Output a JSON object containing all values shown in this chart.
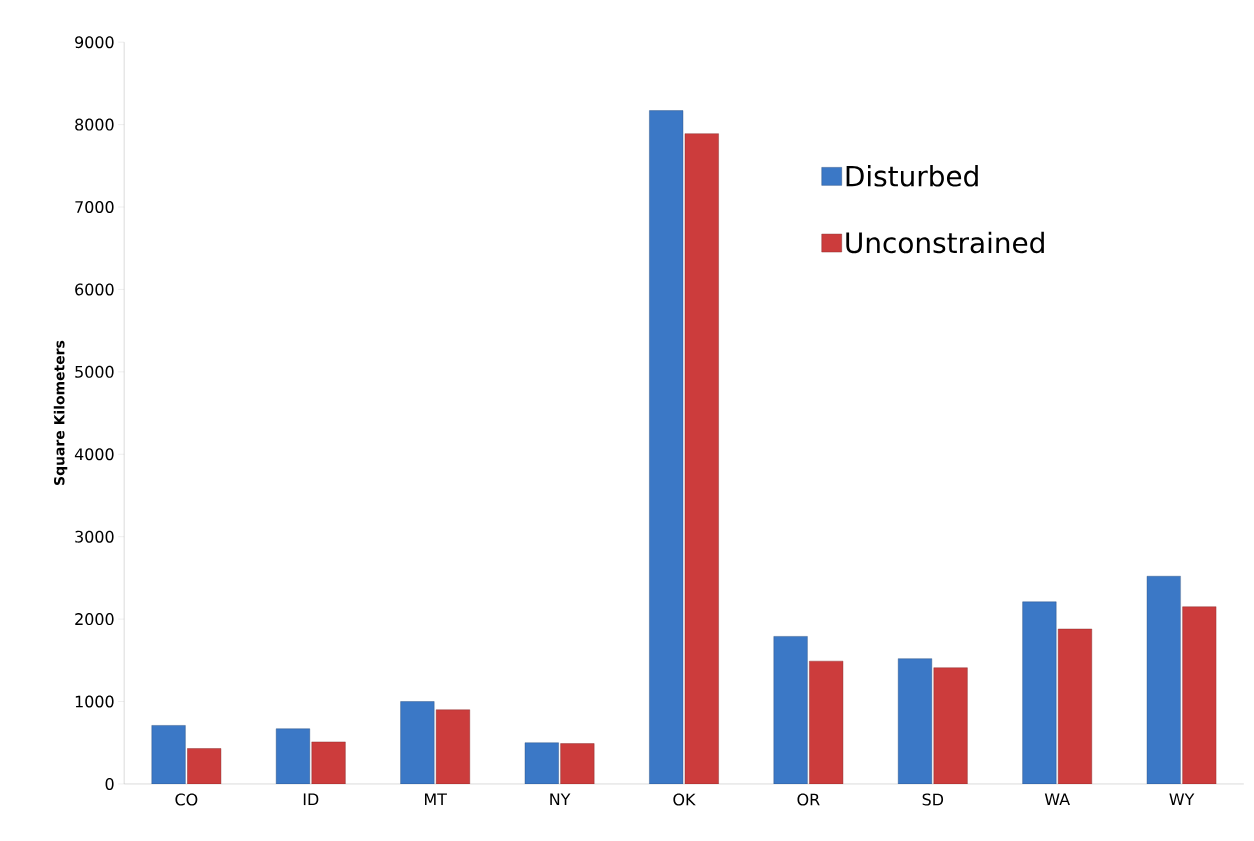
{
  "chart_data": {
    "type": "bar",
    "ylabel": "Square Kilometers",
    "categories": [
      "CO",
      "ID",
      "MT",
      "NY",
      "OK",
      "OR",
      "SD",
      "WA",
      "WY"
    ],
    "series": [
      {
        "name": "Disturbed",
        "color": "#3b78c6",
        "values": [
          710,
          670,
          1000,
          500,
          8170,
          1790,
          1520,
          2210,
          2520
        ]
      },
      {
        "name": "Unconstrained",
        "color": "#cc3c3c",
        "values": [
          430,
          510,
          900,
          490,
          7890,
          1490,
          1410,
          1880,
          2150
        ]
      }
    ],
    "ylim": [
      0,
      9000
    ],
    "yticks": [
      0,
      1000,
      2000,
      3000,
      4000,
      5000,
      6000,
      7000,
      8000,
      9000
    ],
    "grid": false,
    "legend": "top right"
  }
}
